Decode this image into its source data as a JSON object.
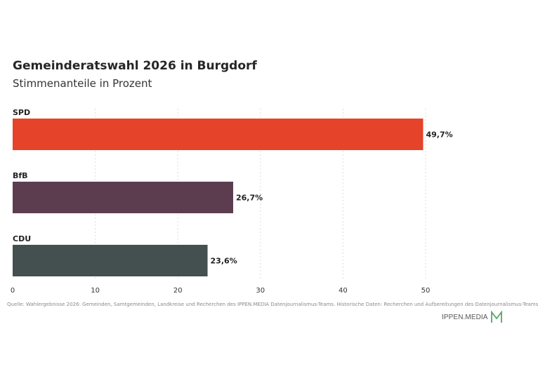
{
  "title": "Gemeinderatswahl 2026 in Burgdorf",
  "subtitle": "Stimmenanteile in Prozent",
  "source": "Quelle: Wahlergebnisse 2026: Gemeinden, Samtgemeinden, Landkreise und Recherchen des IPPEN.MEDIA Datenjournalismus-Teams. Historische Daten: Recherchen und Aufbereitungen des Datenjournalismus-Teams",
  "logo_text": "IPPEN.MEDIA",
  "colors": {
    "logo_mark": "#5aa469"
  },
  "chart_data": {
    "type": "bar",
    "orientation": "horizontal",
    "categories": [
      "SPD",
      "BfB",
      "CDU"
    ],
    "values": [
      49.7,
      26.7,
      23.6
    ],
    "value_labels": [
      "49,7%",
      "26,7%",
      "23,6%"
    ],
    "colors": [
      "#e5432a",
      "#5c3d50",
      "#44504f"
    ],
    "xlim": [
      0,
      50
    ],
    "xticks": [
      "0",
      "10",
      "20",
      "30",
      "40",
      "50"
    ],
    "grid": true,
    "legend": "none"
  }
}
